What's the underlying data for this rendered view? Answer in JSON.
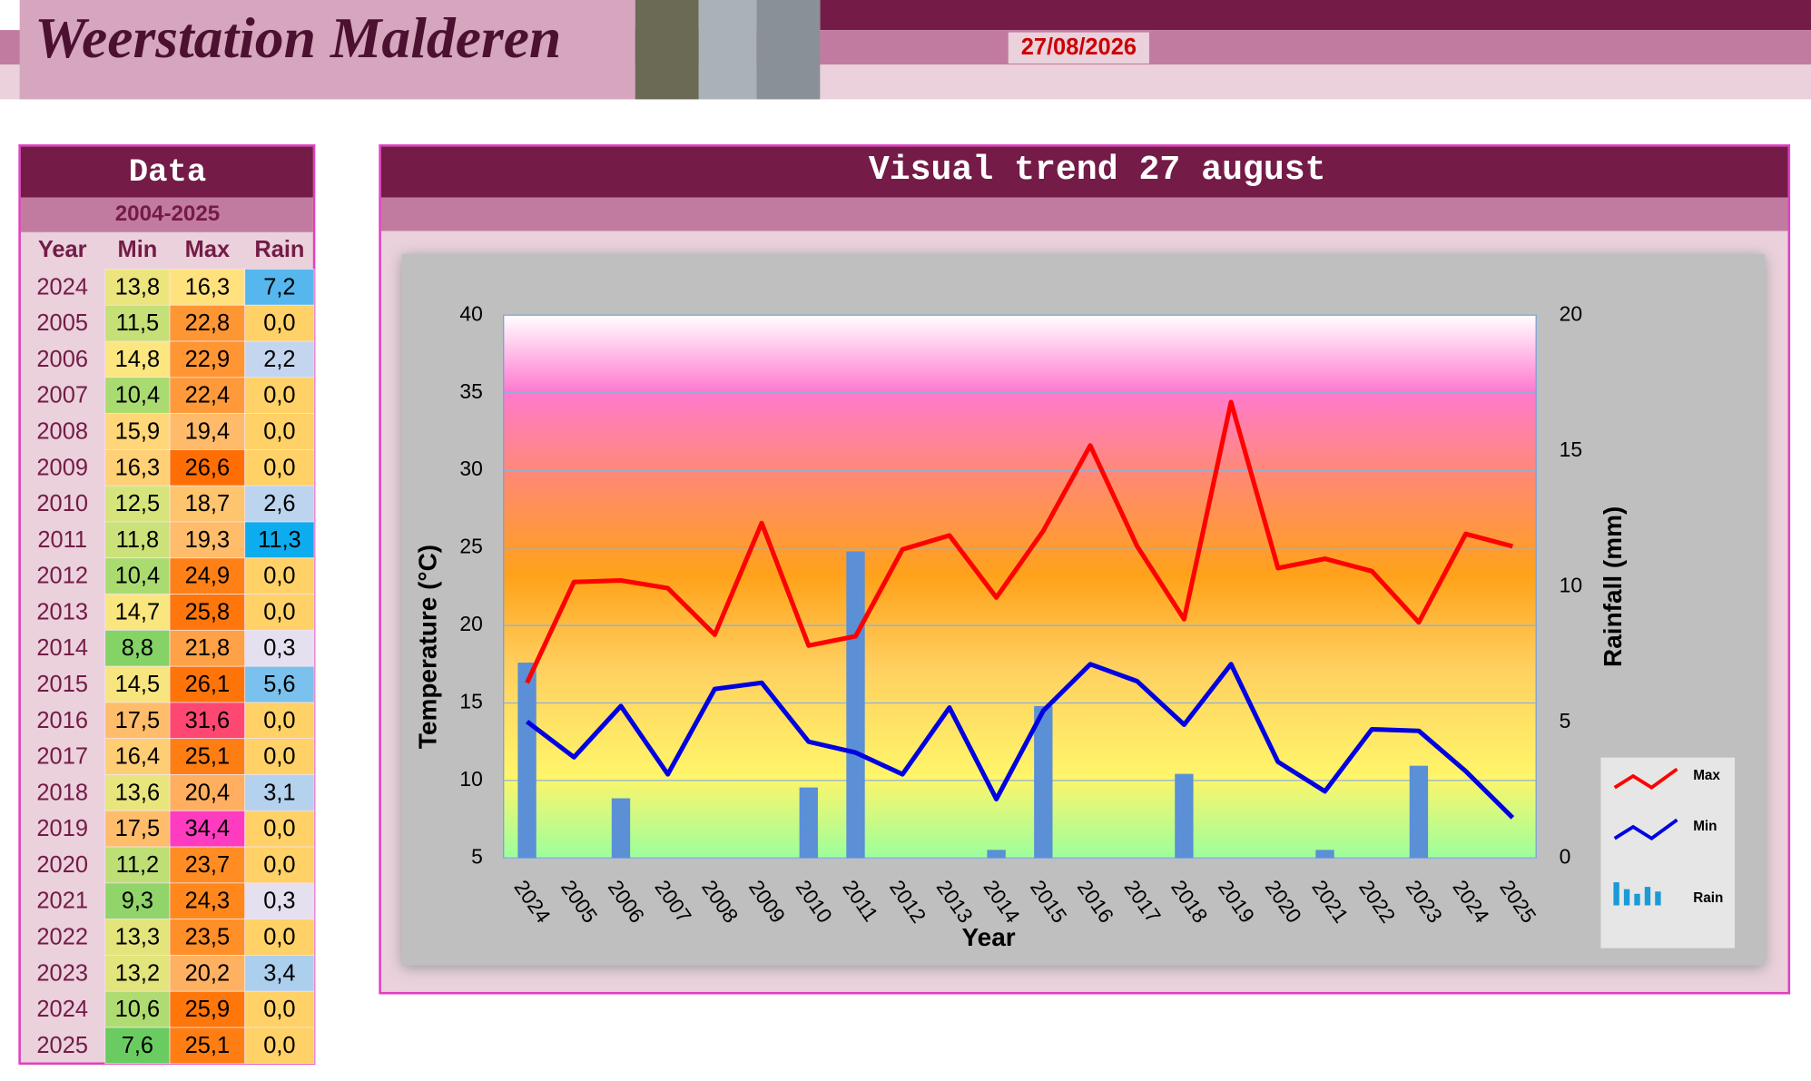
{
  "header": {
    "title": "Weerstation Malderen",
    "date": "27/08/2026"
  },
  "table": {
    "title": "Data",
    "subtitle": "2004-2025",
    "columns": [
      "Year",
      "Min",
      "Max",
      "Rain"
    ],
    "rows": [
      [
        "2024",
        "13,8",
        "16,3",
        "7,2"
      ],
      [
        "2005",
        "11,5",
        "22,8",
        "0,0"
      ],
      [
        "2006",
        "14,8",
        "22,9",
        "2,2"
      ],
      [
        "2007",
        "10,4",
        "22,4",
        "0,0"
      ],
      [
        "2008",
        "15,9",
        "19,4",
        "0,0"
      ],
      [
        "2009",
        "16,3",
        "26,6",
        "0,0"
      ],
      [
        "2010",
        "12,5",
        "18,7",
        "2,6"
      ],
      [
        "2011",
        "11,8",
        "19,3",
        "11,3"
      ],
      [
        "2012",
        "10,4",
        "24,9",
        "0,0"
      ],
      [
        "2013",
        "14,7",
        "25,8",
        "0,0"
      ],
      [
        "2014",
        "8,8",
        "21,8",
        "0,3"
      ],
      [
        "2015",
        "14,5",
        "26,1",
        "5,6"
      ],
      [
        "2016",
        "17,5",
        "31,6",
        "0,0"
      ],
      [
        "2017",
        "16,4",
        "25,1",
        "0,0"
      ],
      [
        "2018",
        "13,6",
        "20,4",
        "3,1"
      ],
      [
        "2019",
        "17,5",
        "34,4",
        "0,0"
      ],
      [
        "2020",
        "11,2",
        "23,7",
        "0,0"
      ],
      [
        "2021",
        "9,3",
        "24,3",
        "0,3"
      ],
      [
        "2022",
        "13,3",
        "23,5",
        "0,0"
      ],
      [
        "2023",
        "13,2",
        "20,2",
        "3,4"
      ],
      [
        "2024",
        "10,6",
        "25,9",
        "0,0"
      ],
      [
        "2025",
        "7,6",
        "25,1",
        "0,0"
      ]
    ]
  },
  "chart_data": {
    "type": "line",
    "title": "Visual trend 27 august",
    "x_label": "Year",
    "y_label": "Temperature (°C)",
    "y2_label": "Rainfall (mm)",
    "categories": [
      "2024",
      "2005",
      "2006",
      "2007",
      "2008",
      "2009",
      "2010",
      "2011",
      "2012",
      "2013",
      "2014",
      "2015",
      "2016",
      "2017",
      "2018",
      "2019",
      "2020",
      "2021",
      "2022",
      "2023",
      "2024",
      "2025"
    ],
    "series": [
      {
        "name": "Max",
        "type": "line",
        "color": "#ff0000",
        "values": [
          16.3,
          22.8,
          22.9,
          22.4,
          19.4,
          26.6,
          18.7,
          19.3,
          24.9,
          25.8,
          21.8,
          26.1,
          31.6,
          25.1,
          20.4,
          34.4,
          23.7,
          24.3,
          23.5,
          20.2,
          25.9,
          25.1
        ]
      },
      {
        "name": "Min",
        "type": "line",
        "color": "#0000e0",
        "values": [
          13.8,
          11.5,
          14.8,
          10.4,
          15.9,
          16.3,
          12.5,
          11.8,
          10.4,
          14.7,
          8.8,
          14.5,
          17.5,
          16.4,
          13.6,
          17.5,
          11.2,
          9.3,
          13.3,
          13.2,
          10.6,
          7.6
        ]
      },
      {
        "name": "Rain",
        "type": "bar",
        "axis": "y2",
        "color": "#5b8fd6",
        "values": [
          7.2,
          0,
          2.2,
          0,
          0,
          0,
          2.6,
          11.3,
          0,
          0,
          0.3,
          5.6,
          0,
          0,
          3.1,
          0,
          0,
          0.3,
          0,
          3.4,
          0,
          0
        ]
      }
    ],
    "ylim": [
      5,
      40
    ],
    "yticks": [
      5,
      10,
      15,
      20,
      25,
      30,
      35,
      40
    ],
    "y2lim": [
      0,
      20
    ],
    "y2ticks": [
      0,
      5,
      10,
      15,
      20
    ],
    "grid": true,
    "legend": "right"
  }
}
